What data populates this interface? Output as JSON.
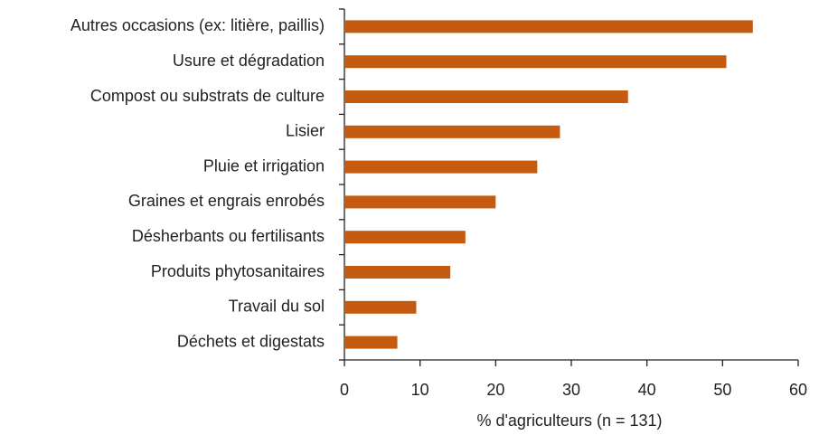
{
  "chart_data": {
    "type": "barh",
    "categories": [
      "Autres occasions (ex: litière, paillis)",
      "Usure et dégradation",
      "Compost ou substrats de culture",
      "Lisier",
      "Pluie et irrigation",
      "Graines et engrais enrobés",
      "Désherbants ou fertilisants",
      "Produits phytosanitaires",
      "Travail du sol",
      "Déchets et digestats"
    ],
    "values": [
      54,
      50.5,
      37.5,
      28.5,
      25.5,
      20,
      16,
      14,
      9.5,
      7
    ],
    "color": "#c55a11",
    "x_label": "% d'agriculteurs (n = 131)",
    "xlim": [
      0,
      60
    ],
    "xticks": [
      0,
      10,
      20,
      30,
      40,
      50,
      60
    ],
    "grid": false
  }
}
